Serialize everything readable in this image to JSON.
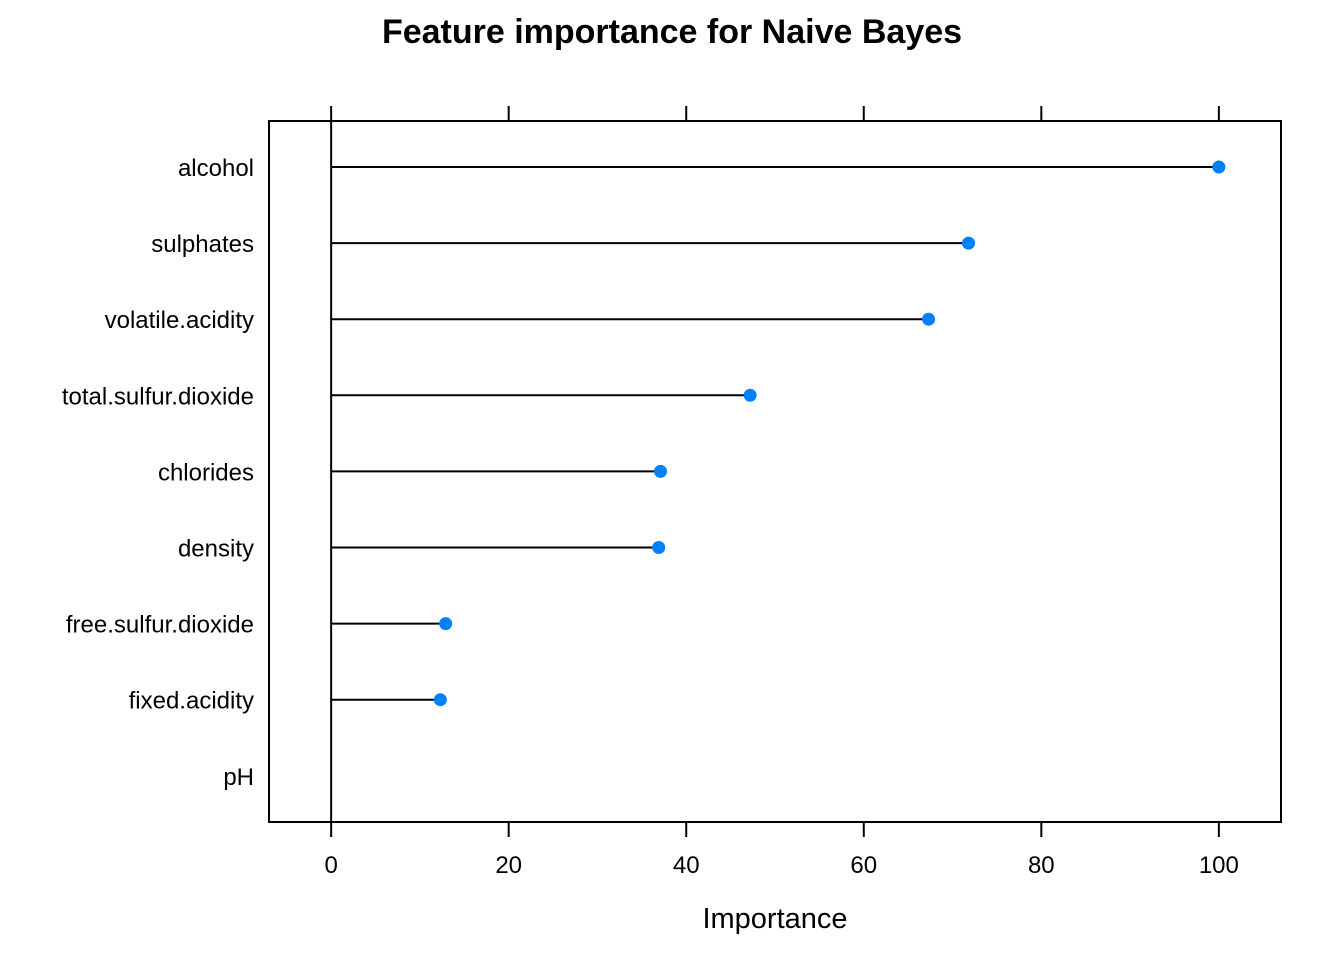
{
  "chart_data": {
    "type": "dot",
    "title": "Feature importance for Naive Bayes",
    "xlabel": "Importance",
    "ylabel": "",
    "xlim": [
      -7,
      107
    ],
    "xticks": [
      0,
      20,
      40,
      60,
      80,
      100
    ],
    "categories": [
      "alcohol",
      "sulphates",
      "volatile.acidity",
      "total.sulfur.dioxide",
      "chlorides",
      "density",
      "free.sulfur.dioxide",
      "fixed.acidity",
      "pH"
    ],
    "values": [
      100,
      71.8,
      67.3,
      47.2,
      37.1,
      36.9,
      12.9,
      12.3,
      0
    ],
    "point_color": "#0080FF",
    "line_color": "#000000",
    "grid": false,
    "legend": "none"
  }
}
